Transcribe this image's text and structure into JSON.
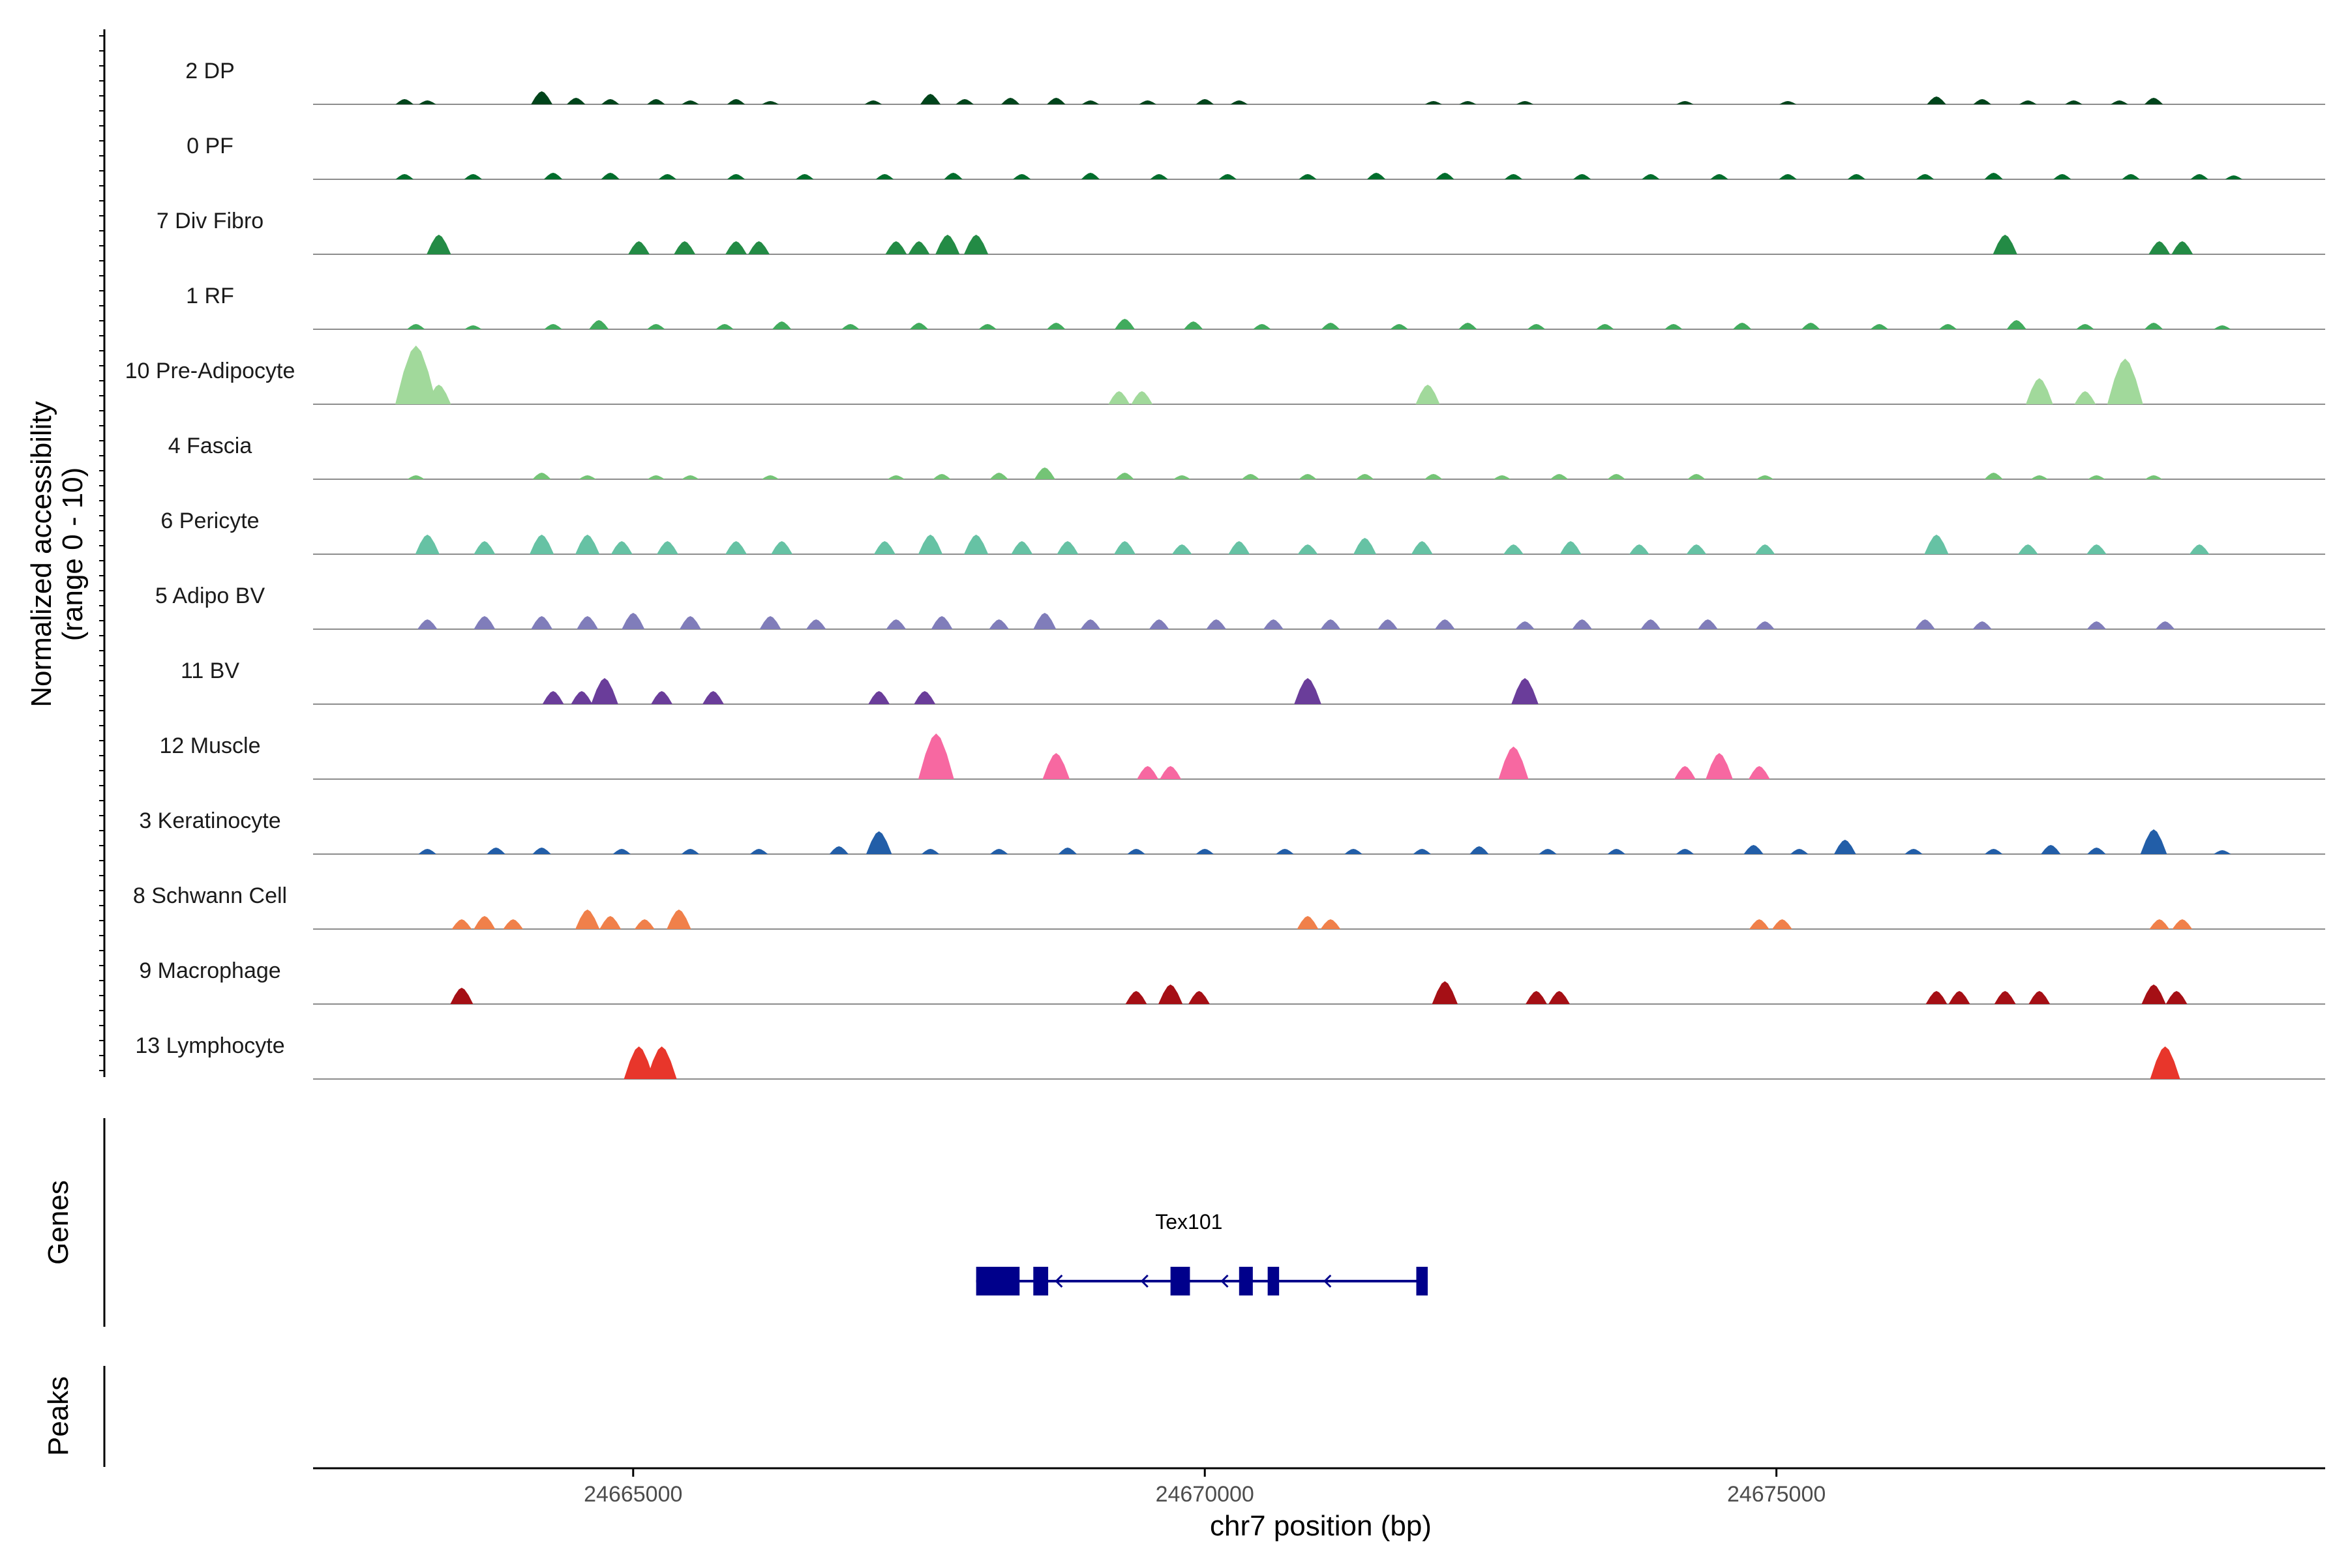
{
  "chart_data": {
    "type": "area",
    "region": {
      "chrom": "chr7",
      "start": 24662200,
      "end": 24679800
    },
    "ylabel": "Normalized accessibility",
    "ylabel_sub": "(range 0 - 10)",
    "xlabel": "chr7 position (bp)",
    "x_ticks": [
      24665000,
      24670000,
      24675000
    ],
    "y_range": [
      0,
      10
    ],
    "genes_label": "Genes",
    "peaks_label": "Peaks",
    "tracks": [
      {
        "name": "2 DP",
        "color": "#00441b",
        "peaks": [
          [
            24663000,
            0.8
          ],
          [
            24663200,
            0.6
          ],
          [
            24664200,
            2.0
          ],
          [
            24664500,
            1.0
          ],
          [
            24664800,
            0.8
          ],
          [
            24665200,
            0.8
          ],
          [
            24665500,
            0.6
          ],
          [
            24665900,
            0.8
          ],
          [
            24666200,
            0.5
          ],
          [
            24667100,
            0.6
          ],
          [
            24667600,
            1.6
          ],
          [
            24667900,
            0.8
          ],
          [
            24668300,
            1.0
          ],
          [
            24668700,
            1.0
          ],
          [
            24669000,
            0.6
          ],
          [
            24669500,
            0.6
          ],
          [
            24670000,
            0.8
          ],
          [
            24670300,
            0.6
          ],
          [
            24672000,
            0.5
          ],
          [
            24672300,
            0.5
          ],
          [
            24672800,
            0.5
          ],
          [
            24674200,
            0.5
          ],
          [
            24675100,
            0.5
          ],
          [
            24676400,
            1.2
          ],
          [
            24676800,
            0.8
          ],
          [
            24677200,
            0.6
          ],
          [
            24677600,
            0.6
          ],
          [
            24678000,
            0.6
          ],
          [
            24678300,
            1.0
          ]
        ]
      },
      {
        "name": "0 PF",
        "color": "#006d2c",
        "peaks": [
          [
            24663000,
            0.8
          ],
          [
            24663600,
            0.8
          ],
          [
            24664300,
            1.0
          ],
          [
            24664800,
            1.0
          ],
          [
            24665300,
            0.8
          ],
          [
            24665900,
            0.8
          ],
          [
            24666500,
            0.8
          ],
          [
            24667200,
            0.8
          ],
          [
            24667800,
            1.0
          ],
          [
            24668400,
            0.8
          ],
          [
            24669000,
            1.0
          ],
          [
            24669600,
            0.8
          ],
          [
            24670200,
            0.8
          ],
          [
            24670900,
            0.8
          ],
          [
            24671500,
            1.0
          ],
          [
            24672100,
            1.0
          ],
          [
            24672700,
            0.8
          ],
          [
            24673300,
            0.8
          ],
          [
            24673900,
            0.8
          ],
          [
            24674500,
            0.8
          ],
          [
            24675100,
            0.8
          ],
          [
            24675700,
            0.8
          ],
          [
            24676300,
            0.8
          ],
          [
            24676900,
            1.0
          ],
          [
            24677500,
            0.8
          ],
          [
            24678100,
            0.8
          ],
          [
            24678700,
            0.8
          ],
          [
            24679000,
            0.6
          ]
        ]
      },
      {
        "name": "7 Div Fibro",
        "color": "#238b45",
        "peaks": [
          [
            24663300,
            3.0
          ],
          [
            24665050,
            2.0
          ],
          [
            24665450,
            2.0
          ],
          [
            24665900,
            2.0
          ],
          [
            24666100,
            2.0
          ],
          [
            24667300,
            2.0
          ],
          [
            24667500,
            2.0
          ],
          [
            24667750,
            3.0
          ],
          [
            24668000,
            3.0
          ],
          [
            24677000,
            3.0
          ],
          [
            24678350,
            2.0
          ],
          [
            24678550,
            2.0
          ]
        ]
      },
      {
        "name": "1 RF",
        "color": "#41ab5d",
        "peaks": [
          [
            24663100,
            0.8
          ],
          [
            24663600,
            0.6
          ],
          [
            24664300,
            0.8
          ],
          [
            24664700,
            1.4
          ],
          [
            24665200,
            0.8
          ],
          [
            24665800,
            0.8
          ],
          [
            24666300,
            1.2
          ],
          [
            24666900,
            0.8
          ],
          [
            24667500,
            1.0
          ],
          [
            24668100,
            0.8
          ],
          [
            24668700,
            1.0
          ],
          [
            24669300,
            1.6
          ],
          [
            24669900,
            1.2
          ],
          [
            24670500,
            0.8
          ],
          [
            24671100,
            1.0
          ],
          [
            24671700,
            0.8
          ],
          [
            24672300,
            1.0
          ],
          [
            24672900,
            0.8
          ],
          [
            24673500,
            0.8
          ],
          [
            24674100,
            0.8
          ],
          [
            24674700,
            1.0
          ],
          [
            24675300,
            1.0
          ],
          [
            24675900,
            0.8
          ],
          [
            24676500,
            0.8
          ],
          [
            24677100,
            1.4
          ],
          [
            24677700,
            0.8
          ],
          [
            24678300,
            1.0
          ],
          [
            24678900,
            0.6
          ]
        ]
      },
      {
        "name": "10 Pre-Adipocyte",
        "color": "#a1d99b",
        "peaks": [
          [
            24663100,
            9.0
          ],
          [
            24663300,
            3.0
          ],
          [
            24669250,
            2.0
          ],
          [
            24669450,
            2.0
          ],
          [
            24671950,
            3.0
          ],
          [
            24677300,
            4.0
          ],
          [
            24677700,
            2.0
          ],
          [
            24678050,
            7.0
          ]
        ]
      },
      {
        "name": "4 Fascia",
        "color": "#74c476",
        "peaks": [
          [
            24663100,
            0.6
          ],
          [
            24664200,
            1.0
          ],
          [
            24664600,
            0.6
          ],
          [
            24665200,
            0.6
          ],
          [
            24665500,
            0.6
          ],
          [
            24666200,
            0.6
          ],
          [
            24667300,
            0.6
          ],
          [
            24667700,
            0.8
          ],
          [
            24668200,
            1.0
          ],
          [
            24668600,
            1.8
          ],
          [
            24669300,
            1.0
          ],
          [
            24669800,
            0.6
          ],
          [
            24670400,
            0.8
          ],
          [
            24670900,
            0.8
          ],
          [
            24671400,
            0.8
          ],
          [
            24672000,
            0.8
          ],
          [
            24672600,
            0.6
          ],
          [
            24673100,
            0.8
          ],
          [
            24673600,
            0.8
          ],
          [
            24674300,
            0.8
          ],
          [
            24674900,
            0.6
          ],
          [
            24676900,
            1.0
          ],
          [
            24677300,
            0.6
          ],
          [
            24677800,
            0.6
          ],
          [
            24678300,
            0.6
          ]
        ]
      },
      {
        "name": "6 Pericyte",
        "color": "#66c2a4",
        "peaks": [
          [
            24663200,
            3.0
          ],
          [
            24663700,
            2.0
          ],
          [
            24664200,
            3.0
          ],
          [
            24664600,
            3.0
          ],
          [
            24664900,
            2.0
          ],
          [
            24665300,
            2.0
          ],
          [
            24665900,
            2.0
          ],
          [
            24666300,
            2.0
          ],
          [
            24667200,
            2.0
          ],
          [
            24667600,
            3.0
          ],
          [
            24668000,
            3.0
          ],
          [
            24668400,
            2.0
          ],
          [
            24668800,
            2.0
          ],
          [
            24669300,
            2.0
          ],
          [
            24669800,
            1.5
          ],
          [
            24670300,
            2.0
          ],
          [
            24670900,
            1.5
          ],
          [
            24671400,
            2.5
          ],
          [
            24671900,
            2.0
          ],
          [
            24672700,
            1.5
          ],
          [
            24673200,
            2.0
          ],
          [
            24673800,
            1.5
          ],
          [
            24674300,
            1.5
          ],
          [
            24674900,
            1.5
          ],
          [
            24676400,
            3.0
          ],
          [
            24677200,
            1.5
          ],
          [
            24677800,
            1.5
          ],
          [
            24678700,
            1.5
          ]
        ]
      },
      {
        "name": "5 Adipo BV",
        "color": "#807dba",
        "peaks": [
          [
            24663200,
            1.5
          ],
          [
            24663700,
            2.0
          ],
          [
            24664200,
            2.0
          ],
          [
            24664600,
            2.0
          ],
          [
            24665000,
            2.5
          ],
          [
            24665500,
            2.0
          ],
          [
            24666200,
            2.0
          ],
          [
            24666600,
            1.5
          ],
          [
            24667300,
            1.5
          ],
          [
            24667700,
            2.0
          ],
          [
            24668200,
            1.5
          ],
          [
            24668600,
            2.5
          ],
          [
            24669000,
            1.5
          ],
          [
            24669600,
            1.5
          ],
          [
            24670100,
            1.5
          ],
          [
            24670600,
            1.5
          ],
          [
            24671100,
            1.5
          ],
          [
            24671600,
            1.5
          ],
          [
            24672100,
            1.5
          ],
          [
            24672800,
            1.2
          ],
          [
            24673300,
            1.5
          ],
          [
            24673900,
            1.5
          ],
          [
            24674400,
            1.5
          ],
          [
            24674900,
            1.2
          ],
          [
            24676300,
            1.5
          ],
          [
            24676800,
            1.2
          ],
          [
            24677800,
            1.2
          ],
          [
            24678400,
            1.2
          ]
        ]
      },
      {
        "name": "11 BV",
        "color": "#6a3d9a",
        "peaks": [
          [
            24664300,
            2.0
          ],
          [
            24664550,
            2.0
          ],
          [
            24664750,
            4.0
          ],
          [
            24665250,
            2.0
          ],
          [
            24665700,
            2.0
          ],
          [
            24667150,
            2.0
          ],
          [
            24667550,
            2.0
          ],
          [
            24670900,
            4.0
          ],
          [
            24672800,
            4.0
          ]
        ]
      },
      {
        "name": "12 Muscle",
        "color": "#f768a1",
        "peaks": [
          [
            24667650,
            7.0
          ],
          [
            24668700,
            4.0
          ],
          [
            24669500,
            2.0
          ],
          [
            24669700,
            2.0
          ],
          [
            24672700,
            5.0
          ],
          [
            24674200,
            2.0
          ],
          [
            24674500,
            4.0
          ],
          [
            24674850,
            2.0
          ]
        ]
      },
      {
        "name": "3 Keratinocyte",
        "color": "#225ea8",
        "peaks": [
          [
            24663200,
            0.8
          ],
          [
            24663800,
            1.0
          ],
          [
            24664200,
            1.0
          ],
          [
            24664900,
            0.8
          ],
          [
            24665500,
            0.8
          ],
          [
            24666100,
            0.8
          ],
          [
            24666800,
            1.2
          ],
          [
            24667150,
            3.5
          ],
          [
            24667600,
            0.8
          ],
          [
            24668200,
            0.8
          ],
          [
            24668800,
            1.0
          ],
          [
            24669400,
            0.8
          ],
          [
            24670000,
            0.8
          ],
          [
            24670700,
            0.8
          ],
          [
            24671300,
            0.8
          ],
          [
            24671900,
            0.8
          ],
          [
            24672400,
            1.2
          ],
          [
            24673000,
            0.8
          ],
          [
            24673600,
            0.8
          ],
          [
            24674200,
            0.8
          ],
          [
            24674800,
            1.4
          ],
          [
            24675200,
            0.8
          ],
          [
            24675600,
            2.2
          ],
          [
            24676200,
            0.8
          ],
          [
            24676900,
            0.8
          ],
          [
            24677400,
            1.4
          ],
          [
            24677800,
            1.0
          ],
          [
            24678300,
            3.8
          ],
          [
            24678900,
            0.6
          ]
        ]
      },
      {
        "name": "8 Schwann Cell",
        "color": "#f0804a",
        "peaks": [
          [
            24663500,
            1.5
          ],
          [
            24663700,
            2.0
          ],
          [
            24663950,
            1.5
          ],
          [
            24664600,
            3.0
          ],
          [
            24664800,
            2.0
          ],
          [
            24665100,
            1.5
          ],
          [
            24665400,
            3.0
          ],
          [
            24670900,
            2.0
          ],
          [
            24671100,
            1.5
          ],
          [
            24674850,
            1.5
          ],
          [
            24675050,
            1.5
          ],
          [
            24678350,
            1.5
          ],
          [
            24678550,
            1.5
          ]
        ]
      },
      {
        "name": "9 Macrophage",
        "color": "#a50f15",
        "peaks": [
          [
            24663500,
            2.5
          ],
          [
            24669400,
            2.0
          ],
          [
            24669700,
            3.0
          ],
          [
            24669950,
            2.0
          ],
          [
            24672100,
            3.5
          ],
          [
            24672900,
            2.0
          ],
          [
            24673100,
            2.0
          ],
          [
            24676400,
            2.0
          ],
          [
            24676600,
            2.0
          ],
          [
            24677000,
            2.0
          ],
          [
            24677300,
            2.0
          ],
          [
            24678300,
            3.0
          ],
          [
            24678500,
            2.0
          ]
        ]
      },
      {
        "name": "13 Lymphocyte",
        "color": "#e8362b",
        "peaks": [
          [
            24665050,
            5.0
          ],
          [
            24665250,
            5.0
          ],
          [
            24678400,
            5.0
          ]
        ]
      }
    ],
    "genes": [
      {
        "name": "Tex101",
        "strand": "-",
        "start": 24668000,
        "end": 24671950,
        "exons": [
          [
            24668000,
            24668380
          ],
          [
            24668500,
            24668630
          ],
          [
            24669700,
            24669870
          ],
          [
            24670300,
            24670420
          ],
          [
            24670550,
            24670650
          ],
          [
            24671850,
            24671950
          ]
        ]
      }
    ],
    "peak_regions": []
  }
}
